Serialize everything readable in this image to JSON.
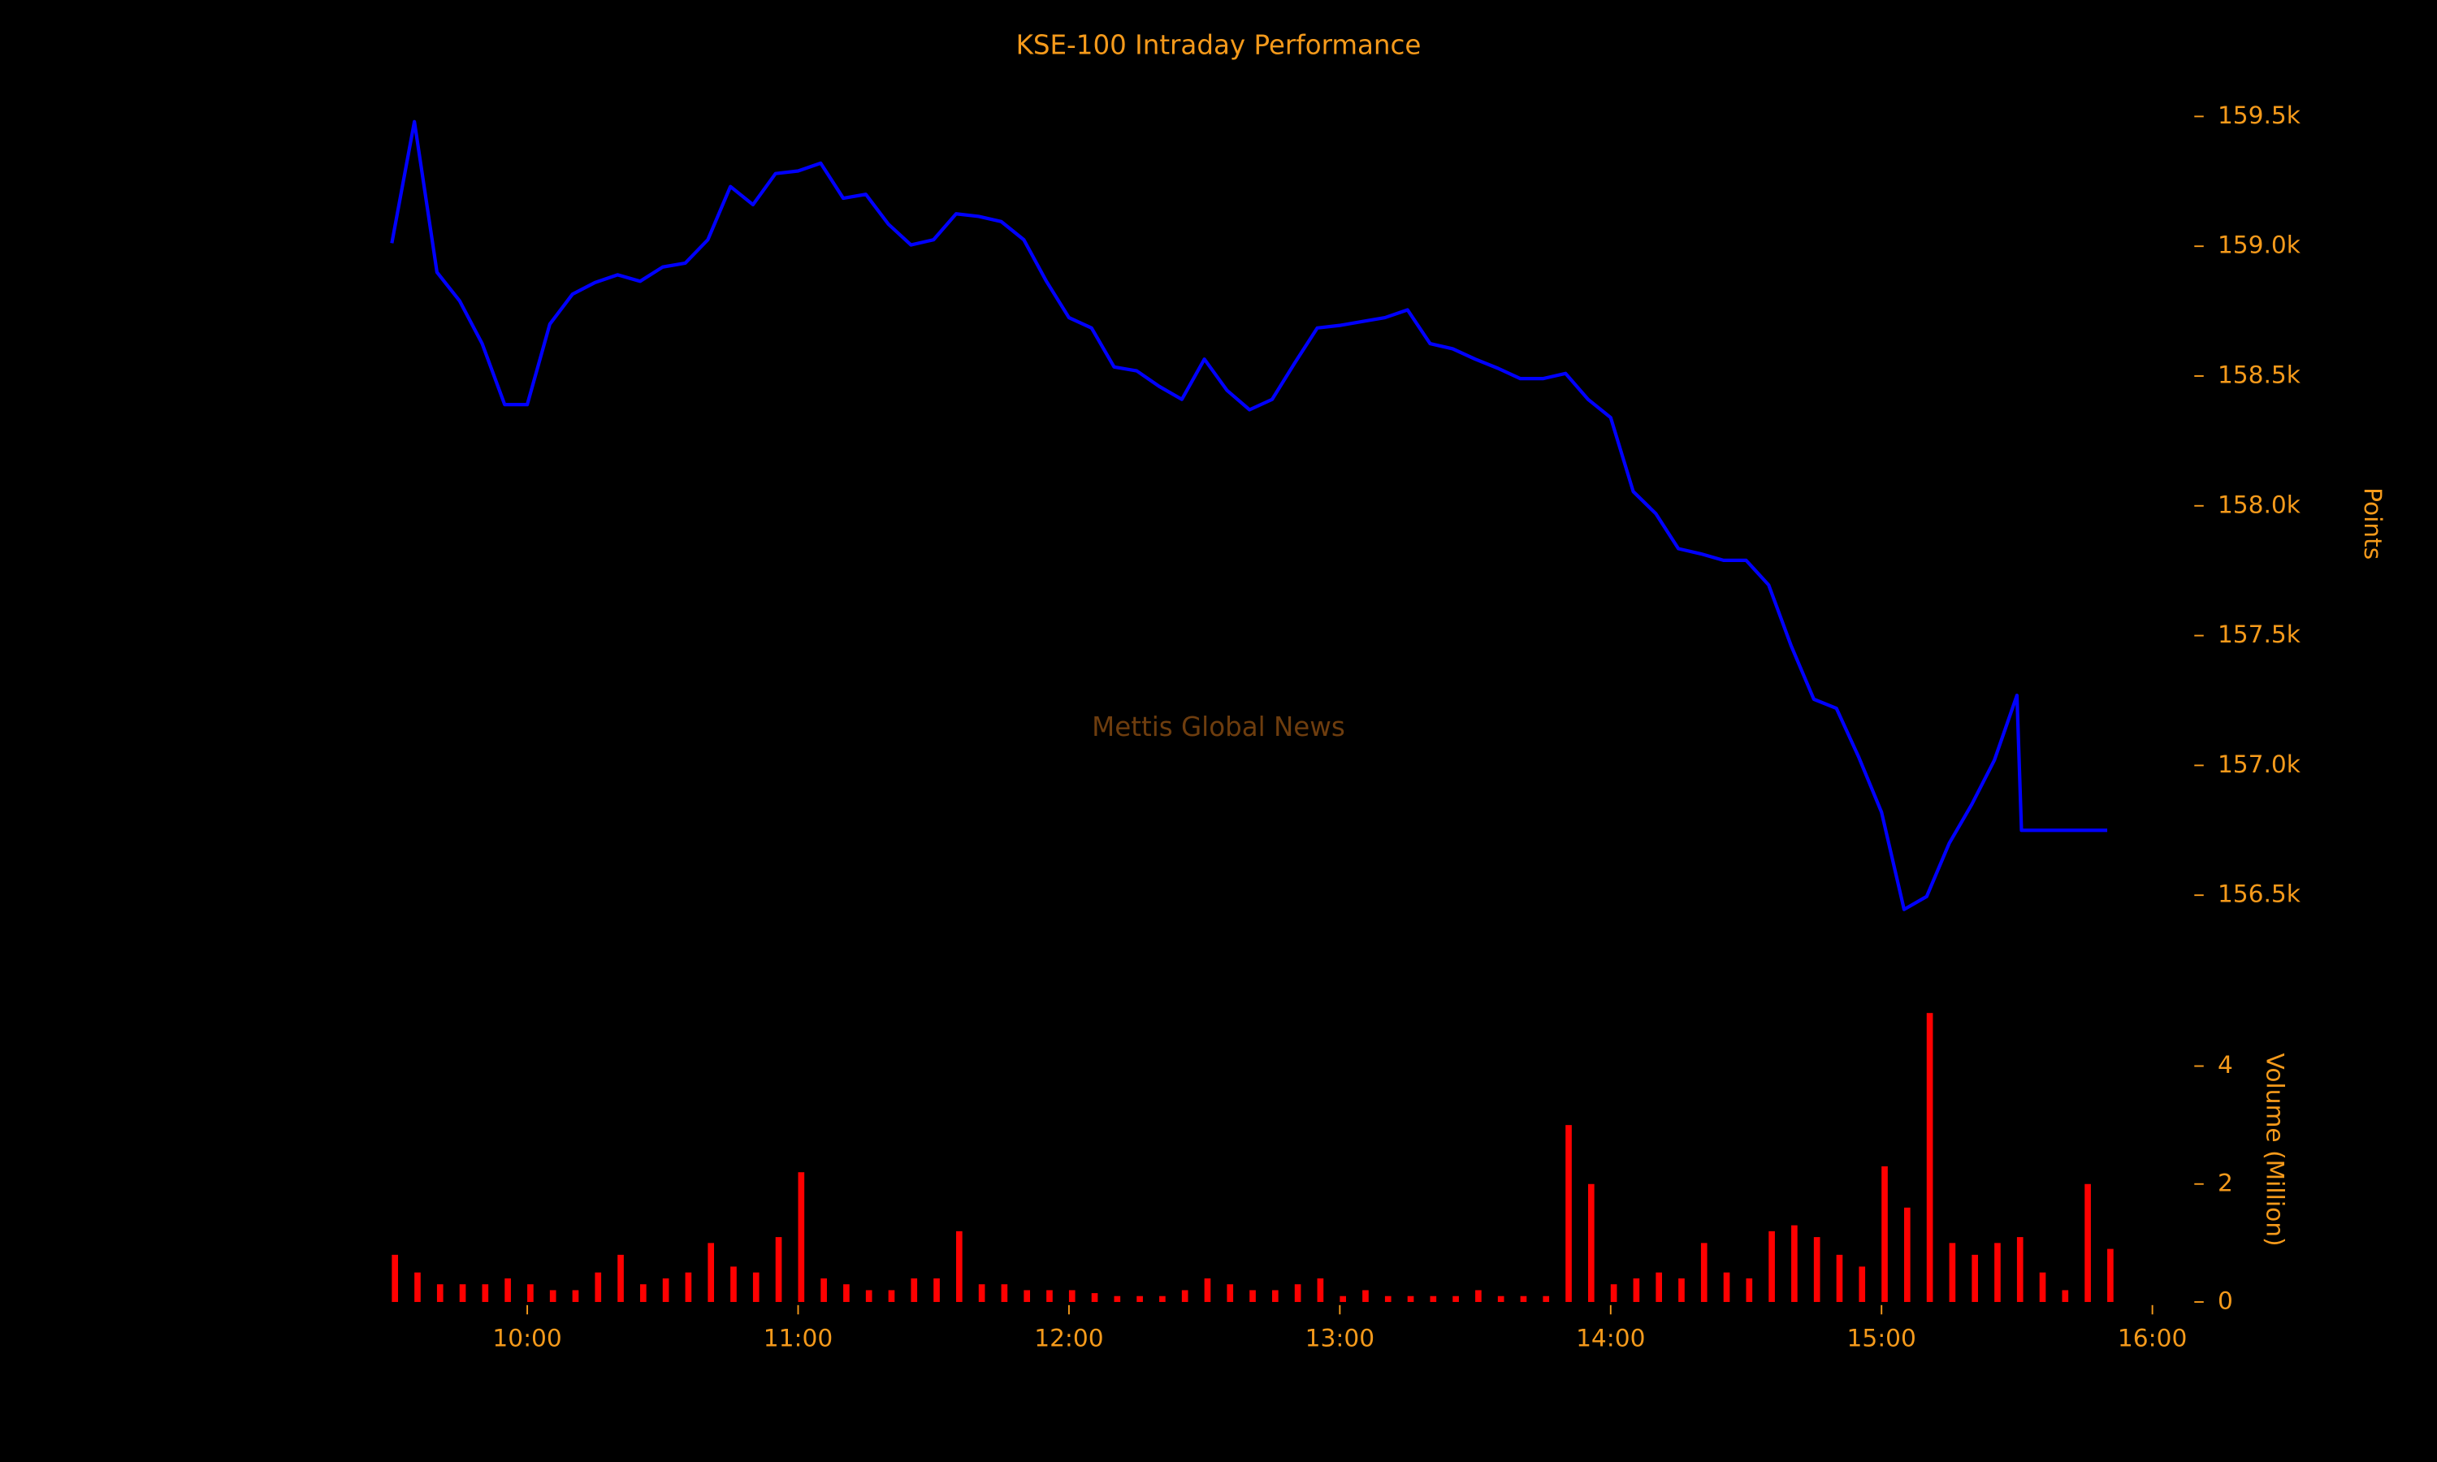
{
  "chart_data": [
    {
      "type": "line",
      "title": "KSE-100 Intraday Performance",
      "ylabel": "Points",
      "annotation": "Mettis Global News",
      "xlim": [
        "09:30",
        "16:00"
      ],
      "ylim": [
        156300,
        159550
      ],
      "yticks": [
        {
          "value": 156500,
          "label": "156.5k"
        },
        {
          "value": 157000,
          "label": "157.0k"
        },
        {
          "value": 157500,
          "label": "157.5k"
        },
        {
          "value": 158000,
          "label": "158.0k"
        },
        {
          "value": 158500,
          "label": "158.5k"
        },
        {
          "value": 159000,
          "label": "159.0k"
        },
        {
          "value": 159500,
          "label": "159.5k"
        }
      ],
      "x": [
        "09:30",
        "09:35",
        "09:40",
        "09:45",
        "09:50",
        "09:55",
        "10:00",
        "10:05",
        "10:10",
        "10:15",
        "10:20",
        "10:25",
        "10:30",
        "10:35",
        "10:40",
        "10:45",
        "10:50",
        "10:55",
        "11:00",
        "11:05",
        "11:10",
        "11:15",
        "11:20",
        "11:25",
        "11:30",
        "11:35",
        "11:40",
        "11:45",
        "11:50",
        "11:55",
        "12:00",
        "12:05",
        "12:10",
        "12:15",
        "12:20",
        "12:25",
        "12:30",
        "12:35",
        "12:40",
        "12:45",
        "12:50",
        "12:55",
        "13:00",
        "13:05",
        "13:10",
        "13:15",
        "13:20",
        "13:25",
        "13:30",
        "13:35",
        "13:40",
        "13:45",
        "13:50",
        "13:55",
        "14:00",
        "14:05",
        "14:10",
        "14:15",
        "14:20",
        "14:25",
        "14:30",
        "14:35",
        "14:40",
        "14:45",
        "14:50",
        "14:55",
        "15:00",
        "15:05",
        "15:10",
        "15:15",
        "15:20",
        "15:25",
        "15:30",
        "15:31",
        "15:50"
      ],
      "series": [
        {
          "color": "#0000ff",
          "values": [
            159012,
            159480,
            158900,
            158790,
            158625,
            158390,
            158390,
            158700,
            158815,
            158860,
            158890,
            158865,
            158920,
            158935,
            159025,
            159230,
            159160,
            159280,
            159290,
            159320,
            159185,
            159200,
            159085,
            159005,
            159025,
            159125,
            159115,
            159095,
            159025,
            158865,
            158725,
            158685,
            158535,
            158520,
            158460,
            158410,
            158565,
            158445,
            158370,
            158410,
            158550,
            158685,
            158695,
            158710,
            158725,
            158755,
            158625,
            158605,
            158565,
            158530,
            158490,
            158490,
            158510,
            158410,
            158340,
            158055,
            157970,
            157835,
            157815,
            157790,
            157790,
            157695,
            157460,
            157255,
            157220,
            157030,
            156820,
            156445,
            156495,
            156700,
            156850,
            157020,
            157270,
            156750,
            156750
          ]
        }
      ]
    },
    {
      "type": "bar",
      "ylabel": "Volume (Million)",
      "xlim": [
        "09:30",
        "16:00"
      ],
      "ylim": [
        0,
        4.9
      ],
      "yticks": [
        0,
        2,
        4
      ],
      "xticks": [
        "10:00",
        "11:00",
        "12:00",
        "13:00",
        "14:00",
        "15:00",
        "16:00"
      ],
      "x": [
        "09:30",
        "09:35",
        "09:40",
        "09:45",
        "09:50",
        "09:55",
        "10:00",
        "10:05",
        "10:10",
        "10:15",
        "10:20",
        "10:25",
        "10:30",
        "10:35",
        "10:40",
        "10:45",
        "10:50",
        "10:55",
        "11:00",
        "11:05",
        "11:10",
        "11:15",
        "11:20",
        "11:25",
        "11:30",
        "11:35",
        "11:40",
        "11:45",
        "11:50",
        "11:55",
        "12:00",
        "12:05",
        "12:10",
        "12:15",
        "12:20",
        "12:25",
        "12:30",
        "12:35",
        "12:40",
        "12:45",
        "12:50",
        "12:55",
        "13:00",
        "13:05",
        "13:10",
        "13:15",
        "13:20",
        "13:25",
        "13:30",
        "13:35",
        "13:40",
        "13:45",
        "13:50",
        "13:55",
        "14:00",
        "14:05",
        "14:10",
        "14:15",
        "14:20",
        "14:25",
        "14:30",
        "14:35",
        "14:40",
        "14:45",
        "14:50",
        "14:55",
        "15:00",
        "15:05",
        "15:10",
        "15:15",
        "15:20",
        "15:25",
        "15:30",
        "15:35",
        "15:40",
        "15:45",
        "15:50"
      ],
      "color": "#ff0000",
      "values": [
        0.8,
        0.5,
        0.3,
        0.3,
        0.3,
        0.4,
        0.3,
        0.2,
        0.2,
        0.5,
        0.8,
        0.3,
        0.4,
        0.5,
        1.0,
        0.6,
        0.5,
        1.1,
        2.2,
        0.4,
        0.3,
        0.2,
        0.2,
        0.4,
        0.4,
        1.2,
        0.3,
        0.3,
        0.2,
        0.2,
        0.2,
        0.15,
        0.1,
        0.1,
        0.1,
        0.2,
        0.4,
        0.3,
        0.2,
        0.2,
        0.3,
        0.4,
        0.1,
        0.2,
        0.1,
        0.1,
        0.1,
        0.1,
        0.2,
        0.1,
        0.1,
        0.1,
        3.0,
        2.0,
        0.3,
        0.4,
        0.5,
        0.4,
        1.0,
        0.5,
        0.4,
        1.2,
        1.3,
        1.1,
        0.8,
        0.6,
        2.3,
        1.6,
        4.9,
        1.0,
        0.8,
        1.0,
        1.1,
        0.5,
        0.2,
        2.0,
        0.9
      ]
    }
  ]
}
